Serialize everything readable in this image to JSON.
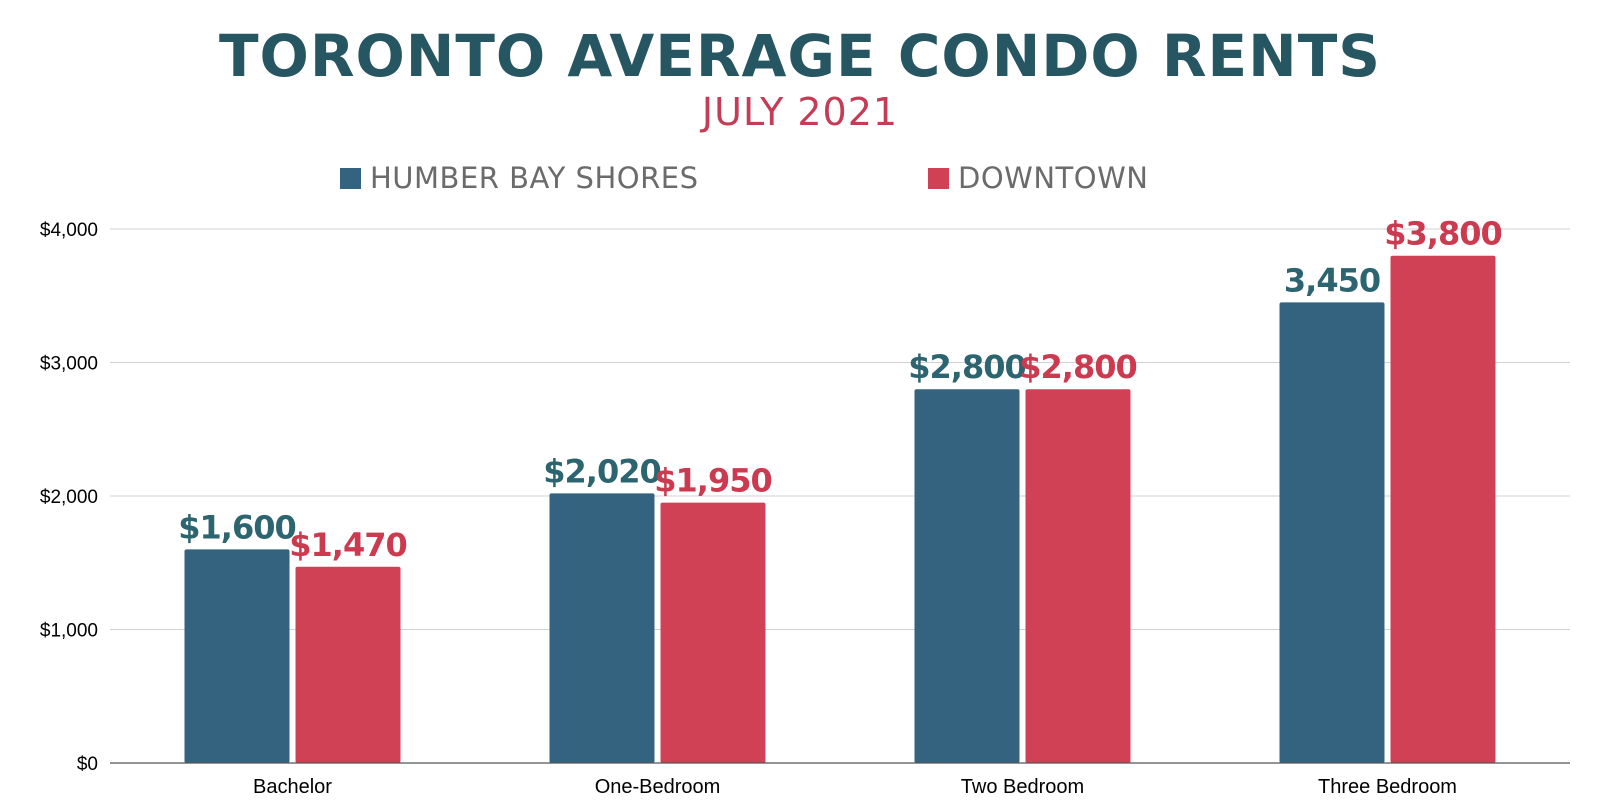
{
  "chart_data": {
    "type": "bar",
    "title": "TORONTO AVERAGE CONDO RENTS",
    "subtitle": "JULY 2021",
    "categories": [
      "Bachelor",
      "One-Bedroom",
      "Two Bedroom",
      "Three Bedroom"
    ],
    "series": [
      {
        "name": "HUMBER BAY SHORES",
        "color": "#33637e",
        "label_color": "#2c6470",
        "values": [
          1600,
          2020,
          2800,
          3450
        ],
        "data_labels": [
          "$1,600",
          "$2,020",
          "$2,800",
          "3,450"
        ]
      },
      {
        "name": "DOWNTOWN",
        "color": "#d04156",
        "label_color": "#cc3a4f",
        "values": [
          1470,
          1950,
          2800,
          3800
        ],
        "data_labels": [
          "$1,470",
          "$1,950",
          "$2,800",
          "$3,800"
        ]
      }
    ],
    "ylim": [
      0,
      4000
    ],
    "yticks": [
      0,
      1000,
      2000,
      3000,
      4000
    ],
    "ytick_labels": [
      "$0",
      "$1,000",
      "$2,000",
      "$3,000",
      "$4,000"
    ],
    "xlabel": "",
    "ylabel": "",
    "grid": true,
    "legend_position": "top"
  }
}
